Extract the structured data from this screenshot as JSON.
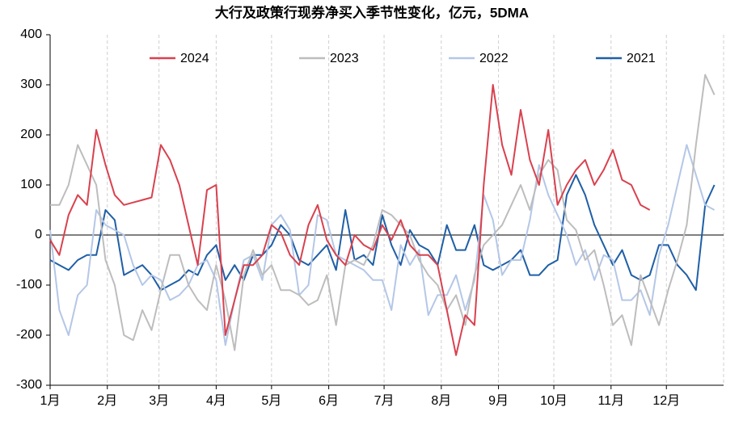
{
  "chart_data": {
    "type": "line",
    "title": "大行及政策行现券净买入季节性变化，亿元，5DMA",
    "x": [
      0,
      5,
      10,
      15,
      20,
      25,
      30,
      35,
      40,
      45,
      50,
      55,
      60,
      65,
      70,
      75,
      80,
      85,
      90,
      95,
      100,
      105,
      110,
      115,
      120,
      125,
      130,
      135,
      140,
      145,
      150,
      155,
      160,
      165,
      170,
      175,
      180,
      185,
      190,
      195,
      200,
      205,
      210,
      215,
      220,
      225,
      230,
      235,
      240,
      245,
      250,
      255,
      260,
      265,
      270,
      275,
      280,
      285,
      290,
      295,
      300,
      305,
      310,
      315,
      320,
      325,
      330,
      335,
      340,
      345,
      350,
      355,
      360
    ],
    "series": [
      {
        "name": "2024",
        "color": "#d9414e",
        "values": [
          -10,
          -40,
          40,
          80,
          60,
          210,
          140,
          80,
          60,
          65,
          70,
          75,
          180,
          150,
          100,
          20,
          -60,
          90,
          100,
          -200,
          -130,
          -60,
          -60,
          -40,
          20,
          5,
          -40,
          -60,
          20,
          60,
          -10,
          -40,
          -60,
          0,
          -20,
          -30,
          20,
          -10,
          30,
          -20,
          -40,
          -40,
          -60,
          -150,
          -240,
          -160,
          -180,
          100,
          300,
          180,
          120,
          250,
          150,
          100,
          210,
          60,
          100,
          130,
          150,
          100,
          130,
          170,
          110,
          100,
          60,
          50,
          null,
          null,
          null,
          null,
          null,
          null,
          null
        ]
      },
      {
        "name": "2023",
        "color": "#bdbdbd",
        "values": [
          60,
          60,
          100,
          180,
          140,
          100,
          -50,
          -100,
          -200,
          -210,
          -150,
          -190,
          -110,
          -40,
          -40,
          -100,
          -130,
          -150,
          -60,
          -130,
          -230,
          -80,
          -30,
          -80,
          -60,
          -110,
          -110,
          -120,
          -140,
          -130,
          -80,
          -180,
          -60,
          -50,
          -60,
          -20,
          50,
          40,
          20,
          0,
          -50,
          -80,
          -100,
          -150,
          -120,
          -180,
          -80,
          -20,
          0,
          20,
          60,
          100,
          50,
          120,
          150,
          130,
          30,
          10,
          -50,
          -30,
          -100,
          -180,
          -160,
          -220,
          -80,
          -130,
          -180,
          -110,
          -50,
          20,
          180,
          320,
          280
        ]
      },
      {
        "name": "2022",
        "color": "#b4c7e7",
        "values": [
          10,
          -150,
          -200,
          -120,
          -100,
          50,
          20,
          10,
          0,
          -60,
          -100,
          -80,
          -90,
          -130,
          -120,
          -100,
          -60,
          -50,
          -90,
          -220,
          -130,
          -50,
          -40,
          -90,
          20,
          40,
          10,
          -120,
          -100,
          40,
          30,
          -40,
          -50,
          -60,
          -70,
          -90,
          -90,
          -150,
          -20,
          -60,
          -30,
          -160,
          -120,
          -120,
          -80,
          -150,
          -90,
          80,
          30,
          -80,
          -50,
          -50,
          30,
          140,
          80,
          40,
          0,
          -60,
          -30,
          -90,
          -40,
          -50,
          -130,
          -130,
          -110,
          -160,
          -40,
          20,
          100,
          180,
          120,
          60,
          50
        ]
      },
      {
        "name": "2021",
        "color": "#1f5fa6",
        "values": [
          -50,
          -60,
          -70,
          -50,
          -40,
          -40,
          50,
          30,
          -80,
          -70,
          -60,
          -80,
          -110,
          -100,
          -90,
          -70,
          -80,
          -40,
          -20,
          -90,
          -60,
          -90,
          -40,
          -40,
          -20,
          20,
          0,
          -50,
          -60,
          -40,
          -20,
          -70,
          50,
          -50,
          -40,
          -60,
          40,
          -20,
          -60,
          10,
          -20,
          -30,
          -60,
          20,
          -30,
          -30,
          20,
          -60,
          -70,
          -60,
          -50,
          -30,
          -80,
          -80,
          -60,
          -50,
          80,
          120,
          80,
          20,
          -20,
          -60,
          -30,
          -80,
          -90,
          -80,
          -20,
          -20,
          -60,
          -80,
          -110,
          60,
          100
        ]
      }
    ],
    "xlim": [
      0,
      365
    ],
    "xticks": [
      {
        "value": 0,
        "label": "1月"
      },
      {
        "value": 31,
        "label": "2月"
      },
      {
        "value": 59,
        "label": "3月"
      },
      {
        "value": 90,
        "label": "4月"
      },
      {
        "value": 120,
        "label": "5月"
      },
      {
        "value": 151,
        "label": "6月"
      },
      {
        "value": 181,
        "label": "7月"
      },
      {
        "value": 212,
        "label": "8月"
      },
      {
        "value": 243,
        "label": "9月"
      },
      {
        "value": 273,
        "label": "10月"
      },
      {
        "value": 304,
        "label": "11月"
      },
      {
        "value": 334,
        "label": "12月"
      }
    ],
    "ylim": [
      -300,
      400
    ],
    "yticks": [
      -300,
      -200,
      -100,
      0,
      100,
      200,
      300,
      400
    ],
    "grid": true,
    "legend": "top"
  }
}
